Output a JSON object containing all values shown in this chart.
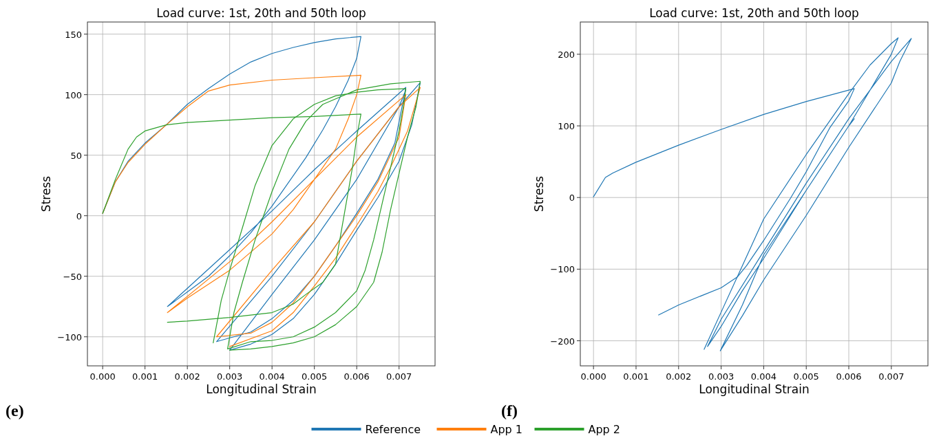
{
  "chart_data": [
    {
      "type": "line",
      "title": "Load curve: 1st, 20th and 50th loop",
      "xlabel": "Longitudinal Strain",
      "ylabel": "Stress",
      "xlim": [
        -0.00036,
        0.00785
      ],
      "ylim": [
        -124,
        160
      ],
      "xticks": [
        {
          "value": 0,
          "label": "0.000"
        },
        {
          "value": 0.001,
          "label": "0.001"
        },
        {
          "value": 0.002,
          "label": "0.002"
        },
        {
          "value": 0.003,
          "label": "0.003"
        },
        {
          "value": 0.004,
          "label": "0.004"
        },
        {
          "value": 0.005,
          "label": "0.005"
        },
        {
          "value": 0.006,
          "label": "0.006"
        },
        {
          "value": 0.007,
          "label": "0.007"
        }
      ],
      "yticks": [
        -100,
        -50,
        0,
        50,
        100,
        150
      ],
      "grid": true,
      "legend": "bottom",
      "annotations": [
        "(e)"
      ],
      "series": [
        {
          "name": "Reference",
          "color": "#1f77b4",
          "x": [
            0,
            0.0003,
            0.0006,
            0.001,
            0.0015,
            0.002,
            0.0025,
            0.003,
            0.0035,
            0.004,
            0.0045,
            0.005,
            0.0055,
            0.0061,
            0.006,
            0.0058,
            0.0055,
            0.0052,
            0.0048,
            0.0044,
            0.004,
            0.0035,
            0.003,
            0.0025,
            0.002,
            0.00153,
            0.003,
            0.004,
            0.005,
            0.006,
            0.00716,
            0.0069,
            0.0065,
            0.006,
            0.0055,
            0.005,
            0.0045,
            0.004,
            0.0035,
            0.00269,
            0.004,
            0.005,
            0.006,
            0.007,
            0.0075,
            0.0073,
            0.007,
            0.0065,
            0.006,
            0.0055,
            0.005,
            0.0045,
            0.004,
            0.0035,
            0.003,
            0.004,
            0.005,
            0.006,
            0.007,
            0.00716
          ],
          "values": [
            2,
            28,
            45,
            60,
            75,
            92,
            105,
            117,
            127,
            134,
            139,
            143,
            146,
            148,
            130,
            112,
            90,
            71,
            48,
            28,
            8,
            -14,
            -33,
            -50,
            -63,
            -75,
            -28,
            4,
            38,
            70,
            106,
            60,
            30,
            2,
            -25,
            -50,
            -70,
            -85,
            -96,
            -104,
            -50,
            -5,
            45,
            90,
            110,
            75,
            45,
            15,
            -12,
            -40,
            -65,
            -85,
            -98,
            -106,
            -111,
            -65,
            -20,
            30,
            90,
            104
          ]
        },
        {
          "name": "App 1",
          "color": "#ff7f0e",
          "x": [
            0,
            0.0003,
            0.0006,
            0.001,
            0.0015,
            0.002,
            0.0025,
            0.003,
            0.004,
            0.005,
            0.0061,
            0.006,
            0.0058,
            0.0055,
            0.005,
            0.0045,
            0.004,
            0.003,
            0.002,
            0.00153,
            0.003,
            0.004,
            0.005,
            0.006,
            0.00716,
            0.007,
            0.0065,
            0.006,
            0.0055,
            0.005,
            0.0045,
            0.004,
            0.0035,
            0.00269,
            0.004,
            0.005,
            0.006,
            0.007,
            0.0075,
            0.0072,
            0.0068,
            0.0065,
            0.006,
            0.0055,
            0.005,
            0.0045,
            0.004,
            0.003
          ],
          "values": [
            2,
            28,
            44,
            59,
            75,
            90,
            103,
            108,
            112,
            114,
            116,
            100,
            80,
            55,
            30,
            5,
            -15,
            -45,
            -68,
            -80,
            -38,
            -5,
            30,
            65,
            100,
            65,
            28,
            0,
            -25,
            -50,
            -72,
            -88,
            -97,
            -100,
            -45,
            -5,
            45,
            90,
            106,
            70,
            40,
            20,
            -8,
            -35,
            -58,
            -80,
            -95,
            -108
          ]
        },
        {
          "name": "App 2",
          "color": "#2ca02c",
          "x": [
            0,
            0.0003,
            0.0006,
            0.0008,
            0.001,
            0.0015,
            0.002,
            0.003,
            0.004,
            0.005,
            0.0061,
            0.006,
            0.0059,
            0.0057,
            0.0055,
            0.0052,
            0.0048,
            0.0045,
            0.004,
            0.003,
            0.002,
            0.00153
          ],
          "values": [
            2,
            30,
            55,
            65,
            70,
            75,
            77,
            79,
            81,
            82,
            84,
            65,
            40,
            0,
            -40,
            -55,
            -65,
            -73,
            -80,
            -84,
            -87,
            -88
          ]
        },
        {
          "color": "#2ca02c",
          "x": [
            0.00261,
            0.0028,
            0.003,
            0.0033,
            0.0036,
            0.004,
            0.0045,
            0.005,
            0.0055,
            0.006,
            0.0065,
            0.00716,
            0.0071,
            0.007,
            0.0068,
            0.0066,
            0.0064,
            0.0062,
            0.006,
            0.0055,
            0.005,
            0.0045,
            0.004,
            0.0035,
            0.00295,
            0.0031,
            0.0033,
            0.0036,
            0.004,
            0.0044,
            0.0048,
            0.0052,
            0.006,
            0.0068,
            0.0075,
            0.0074,
            0.0072,
            0.007,
            0.0068,
            0.0066,
            0.0064,
            0.006,
            0.0055,
            0.005,
            0.0045,
            0.004,
            0.0035,
            0.003
          ],
          "values": [
            -105,
            -70,
            -45,
            -10,
            25,
            58,
            80,
            92,
            99,
            102,
            104,
            105,
            90,
            70,
            40,
            10,
            -20,
            -45,
            -62,
            -80,
            -92,
            -100,
            -103,
            -104,
            -110,
            -80,
            -55,
            -20,
            20,
            55,
            78,
            92,
            104,
            109,
            111,
            90,
            65,
            35,
            5,
            -30,
            -55,
            -75,
            -90,
            -100,
            -105,
            -108,
            -110,
            -111
          ]
        }
      ]
    },
    {
      "type": "line",
      "title": "Load curve: 1st, 20th and 50th loop",
      "xlabel": "Longitudinal Strain",
      "ylabel": "Stress",
      "xlim": [
        -0.00031,
        0.00786
      ],
      "ylim": [
        -235,
        245
      ],
      "xticks": [
        {
          "value": 0,
          "label": "0.000"
        },
        {
          "value": 0.001,
          "label": "0.001"
        },
        {
          "value": 0.002,
          "label": "0.002"
        },
        {
          "value": 0.003,
          "label": "0.003"
        },
        {
          "value": 0.004,
          "label": "0.004"
        },
        {
          "value": 0.005,
          "label": "0.005"
        },
        {
          "value": 0.006,
          "label": "0.006"
        },
        {
          "value": 0.007,
          "label": "0.007"
        }
      ],
      "yticks": [
        -200,
        -100,
        0,
        100,
        200
      ],
      "grid": true,
      "annotations": [
        "(f)"
      ],
      "series": [
        {
          "color": "#1f77b4",
          "x": [
            0,
            0.00028,
            0.00045,
            0.00099,
            0.002,
            0.003,
            0.004,
            0.005,
            0.00613,
            0.006,
            0.00555,
            0.005,
            0.00463,
            0.004,
            0.0036,
            0.00338,
            0.003,
            0.002,
            0.00153
          ],
          "values": [
            1,
            28,
            34,
            49,
            73,
            95,
            116,
            134,
            152,
            135,
            97,
            36,
            -1,
            -60,
            -95,
            -111,
            -126,
            -150,
            -164
          ]
        },
        {
          "color": "#1f77b4",
          "x": [
            0.0026,
            0.003,
            0.0035,
            0.004,
            0.005,
            0.006,
            0.0065,
            0.007,
            0.00716,
            0.007,
            0.0065,
            0.006,
            0.005,
            0.004,
            0.0035,
            0.003,
            0.00268,
            0.003,
            0.004,
            0.005,
            0.006,
            0.007,
            0.00747,
            0.0072,
            0.007,
            0.006,
            0.005,
            0.004,
            0.0035,
            0.00298,
            0.0035,
            0.004,
            0.005,
            0.006,
            0.00613
          ],
          "values": [
            -212,
            -160,
            -95,
            -30,
            60,
            145,
            185,
            215,
            223,
            200,
            150,
            100,
            10,
            -85,
            -130,
            -180,
            -208,
            -170,
            -75,
            20,
            110,
            190,
            222,
            190,
            160,
            70,
            -25,
            -115,
            -165,
            -214,
            -150,
            -80,
            10,
            100,
            110
          ]
        }
      ]
    }
  ]
}
